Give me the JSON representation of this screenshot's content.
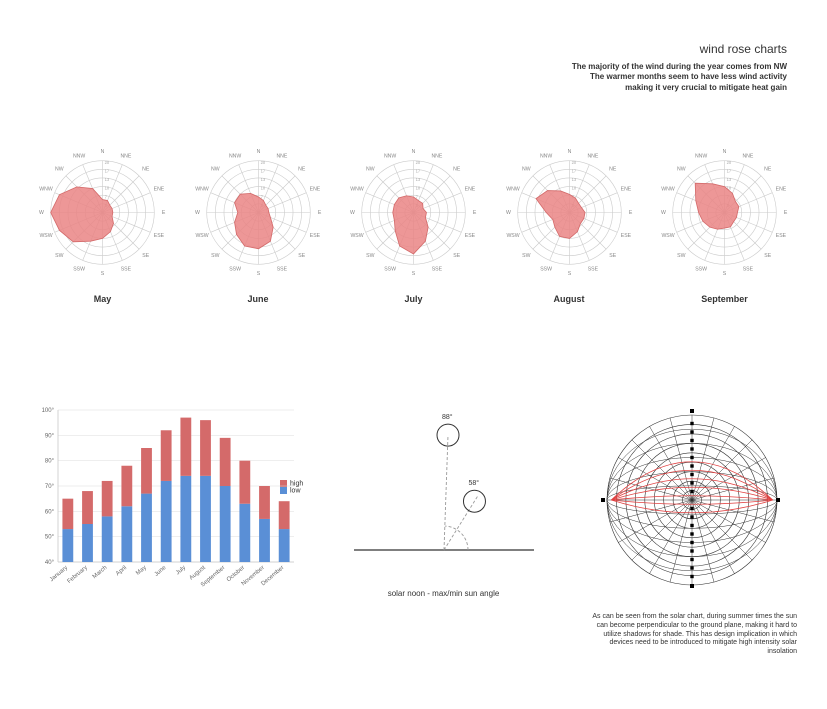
{
  "title": {
    "heading": "wind rose charts",
    "line1": "The majority of the wind during the year comes from NW",
    "line2": "The warmer months seem to have less wind activity",
    "line3": "making it very crucial to mitigate heat gain"
  },
  "wind_rose": {
    "directions": [
      "N",
      "NNE",
      "NE",
      "ENE",
      "E",
      "ESE",
      "SE",
      "SSE",
      "S",
      "SSW",
      "SW",
      "WSW",
      "W",
      "WNW",
      "NW",
      "NNW"
    ],
    "rings": 6,
    "ring_max": 20,
    "grid_color": "#cccccc",
    "fill_color": "#ea8585",
    "stroke_color": "#d46a6a",
    "months": [
      {
        "label": "May",
        "values": [
          5,
          5,
          4,
          4,
          4,
          4,
          6,
          8,
          10,
          12,
          16,
          18,
          20,
          18,
          14,
          10
        ]
      },
      {
        "label": "June",
        "values": [
          6,
          5,
          4,
          4,
          4,
          5,
          8,
          12,
          14,
          14,
          12,
          10,
          8,
          10,
          10,
          8
        ]
      },
      {
        "label": "July",
        "values": [
          6,
          5,
          5,
          4,
          5,
          5,
          8,
          12,
          16,
          14,
          10,
          8,
          8,
          8,
          8,
          7
        ]
      },
      {
        "label": "August",
        "values": [
          7,
          6,
          5,
          5,
          6,
          6,
          6,
          8,
          10,
          10,
          8,
          7,
          9,
          14,
          12,
          9
        ]
      },
      {
        "label": "September",
        "values": [
          10,
          8,
          6,
          6,
          5,
          5,
          5,
          6,
          6,
          7,
          8,
          9,
          10,
          12,
          16,
          12
        ]
      }
    ]
  },
  "temp_chart": {
    "type": "stacked-bar",
    "categories": [
      "January",
      "February",
      "March",
      "April",
      "May",
      "June",
      "July",
      "August",
      "September",
      "October",
      "November",
      "December"
    ],
    "lo": [
      53,
      55,
      58,
      62,
      67,
      72,
      74,
      74,
      70,
      63,
      57,
      53
    ],
    "hi": [
      65,
      68,
      72,
      78,
      85,
      92,
      97,
      96,
      89,
      80,
      70,
      64
    ],
    "lo_color": "#5a8fd6",
    "hi_color": "#d46a6a",
    "y_min": 40,
    "y_max": 100,
    "y_tick_step": 10,
    "grid_color": "#dddddd",
    "legend": {
      "hi_label": "high",
      "lo_label": "low"
    }
  },
  "sun_angle": {
    "min_deg": 58,
    "max_deg": 88,
    "min_label": "58°",
    "max_label": "88°",
    "caption": "solar noon - max/min sun angle",
    "ground_color": "#333333",
    "dash_color": "#999999"
  },
  "solar_chart": {
    "outer_color": "#333333",
    "sunpath_color": "#e03f3f",
    "rings": 9,
    "spokes": 24,
    "caption": "As can be seen from the solar chart, during summer times the sun can become perpendicular to the ground plane, making it hard to utilize shadows for shade. This has design implication in which devices need to be introduced to mitigate high intensity solar insolation"
  }
}
